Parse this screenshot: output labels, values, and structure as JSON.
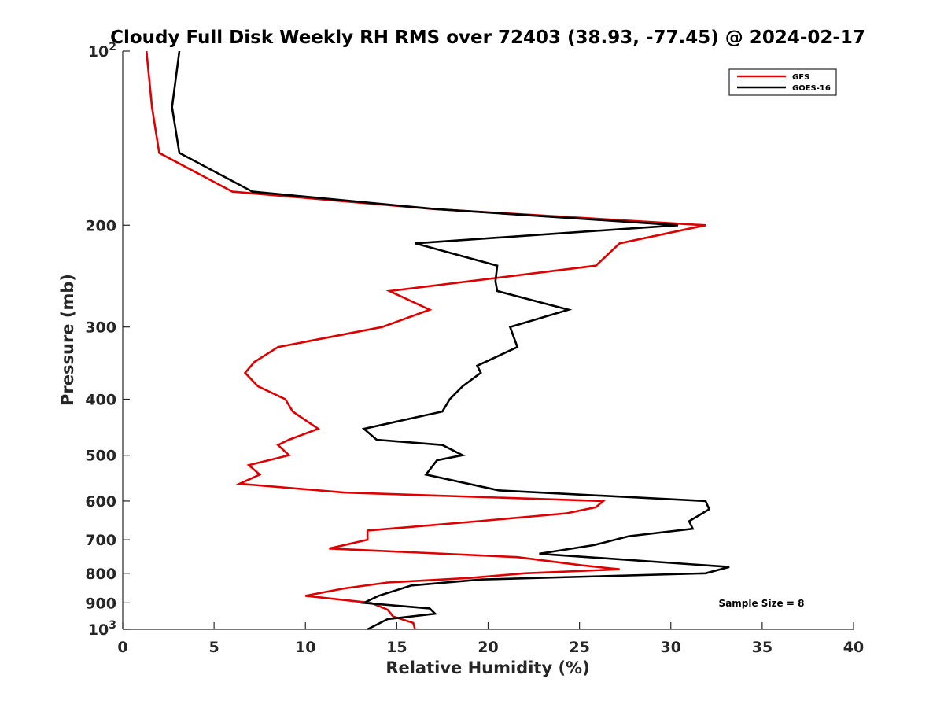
{
  "chart_data": {
    "type": "line",
    "title": "Cloudy Full Disk Weekly RH RMS over 72403 (38.93, -77.45) @ 2024-02-17",
    "xlabel": "Relative Humidity (%)",
    "ylabel": "Pressure (mb)",
    "xlim": [
      0,
      40
    ],
    "ylim": [
      100,
      1000
    ],
    "y_scale": "log",
    "y_reversed": true,
    "grid": false,
    "legend_position": "top-right",
    "x_ticks": [
      0,
      5,
      10,
      15,
      20,
      25,
      30,
      35,
      40
    ],
    "x_tick_labels": [
      "0",
      "5",
      "10",
      "15",
      "20",
      "25",
      "30",
      "35",
      "40"
    ],
    "y_ticks": [
      100,
      200,
      300,
      400,
      500,
      600,
      700,
      800,
      900,
      1000
    ],
    "y_tick_labels": [
      {
        "base": "10",
        "exp": "2"
      },
      {
        "base": "200",
        "exp": ""
      },
      {
        "base": "300",
        "exp": ""
      },
      {
        "base": "400",
        "exp": ""
      },
      {
        "base": "500",
        "exp": ""
      },
      {
        "base": "600",
        "exp": ""
      },
      {
        "base": "700",
        "exp": ""
      },
      {
        "base": "800",
        "exp": ""
      },
      {
        "base": "900",
        "exp": ""
      },
      {
        "base": "10",
        "exp": "3"
      }
    ],
    "annotation": "Sample Size = 8",
    "series": [
      {
        "name": "GFS",
        "color": "#e00000",
        "points": [
          [
            1.3,
            100
          ],
          [
            1.6,
            125
          ],
          [
            2.0,
            150
          ],
          [
            6.0,
            175
          ],
          [
            17.0,
            187.5
          ],
          [
            31.9,
            200
          ],
          [
            27.2,
            215
          ],
          [
            25.9,
            235
          ],
          [
            14.6,
            260
          ],
          [
            16.8,
            280
          ],
          [
            14.2,
            300
          ],
          [
            8.5,
            325
          ],
          [
            7.2,
            345
          ],
          [
            6.7,
            360
          ],
          [
            7.4,
            380
          ],
          [
            8.9,
            400
          ],
          [
            9.3,
            420
          ],
          [
            10.7,
            450
          ],
          [
            9.1,
            470
          ],
          [
            8.5,
            480
          ],
          [
            9.1,
            500
          ],
          [
            6.9,
            520
          ],
          [
            7.5,
            540
          ],
          [
            6.4,
            560
          ],
          [
            12.1,
            580
          ],
          [
            26.3,
            600
          ],
          [
            25.9,
            615
          ],
          [
            24.3,
            630
          ],
          [
            19.5,
            650
          ],
          [
            13.4,
            675
          ],
          [
            13.4,
            700
          ],
          [
            11.3,
            725
          ],
          [
            21.6,
            750
          ],
          [
            25.1,
            775
          ],
          [
            27.2,
            787.5
          ],
          [
            22.0,
            800
          ],
          [
            19.0,
            815
          ],
          [
            14.5,
            830
          ],
          [
            12.1,
            850
          ],
          [
            10.0,
            875
          ],
          [
            13.6,
            900
          ],
          [
            14.5,
            925
          ],
          [
            14.8,
            950
          ],
          [
            15.9,
            975
          ],
          [
            16.0,
            1000
          ]
        ]
      },
      {
        "name": "GOES-16",
        "color": "#000000",
        "points": [
          [
            3.1,
            100
          ],
          [
            2.7,
            125
          ],
          [
            3.1,
            150
          ],
          [
            7.1,
            175
          ],
          [
            17.1,
            187.5
          ],
          [
            30.4,
            200
          ],
          [
            16.0,
            215
          ],
          [
            20.5,
            235
          ],
          [
            20.4,
            250
          ],
          [
            20.5,
            260
          ],
          [
            24.4,
            280
          ],
          [
            21.2,
            300
          ],
          [
            21.6,
            325
          ],
          [
            19.4,
            350
          ],
          [
            19.6,
            360
          ],
          [
            18.6,
            380
          ],
          [
            17.9,
            400
          ],
          [
            17.5,
            420
          ],
          [
            13.2,
            450
          ],
          [
            13.9,
            470
          ],
          [
            17.5,
            480
          ],
          [
            18.6,
            500
          ],
          [
            17.2,
            510
          ],
          [
            16.6,
            540
          ],
          [
            20.6,
            575
          ],
          [
            31.9,
            600
          ],
          [
            32.1,
            620
          ],
          [
            31.0,
            650
          ],
          [
            31.2,
            670
          ],
          [
            27.7,
            690
          ],
          [
            25.8,
            715
          ],
          [
            22.8,
            740
          ],
          [
            33.2,
            780
          ],
          [
            31.9,
            800
          ],
          [
            19.6,
            820
          ],
          [
            15.8,
            840
          ],
          [
            14.0,
            875
          ],
          [
            13.2,
            900
          ],
          [
            16.8,
            920
          ],
          [
            17.1,
            940
          ],
          [
            14.5,
            960
          ],
          [
            13.4,
            1000
          ]
        ]
      }
    ]
  }
}
